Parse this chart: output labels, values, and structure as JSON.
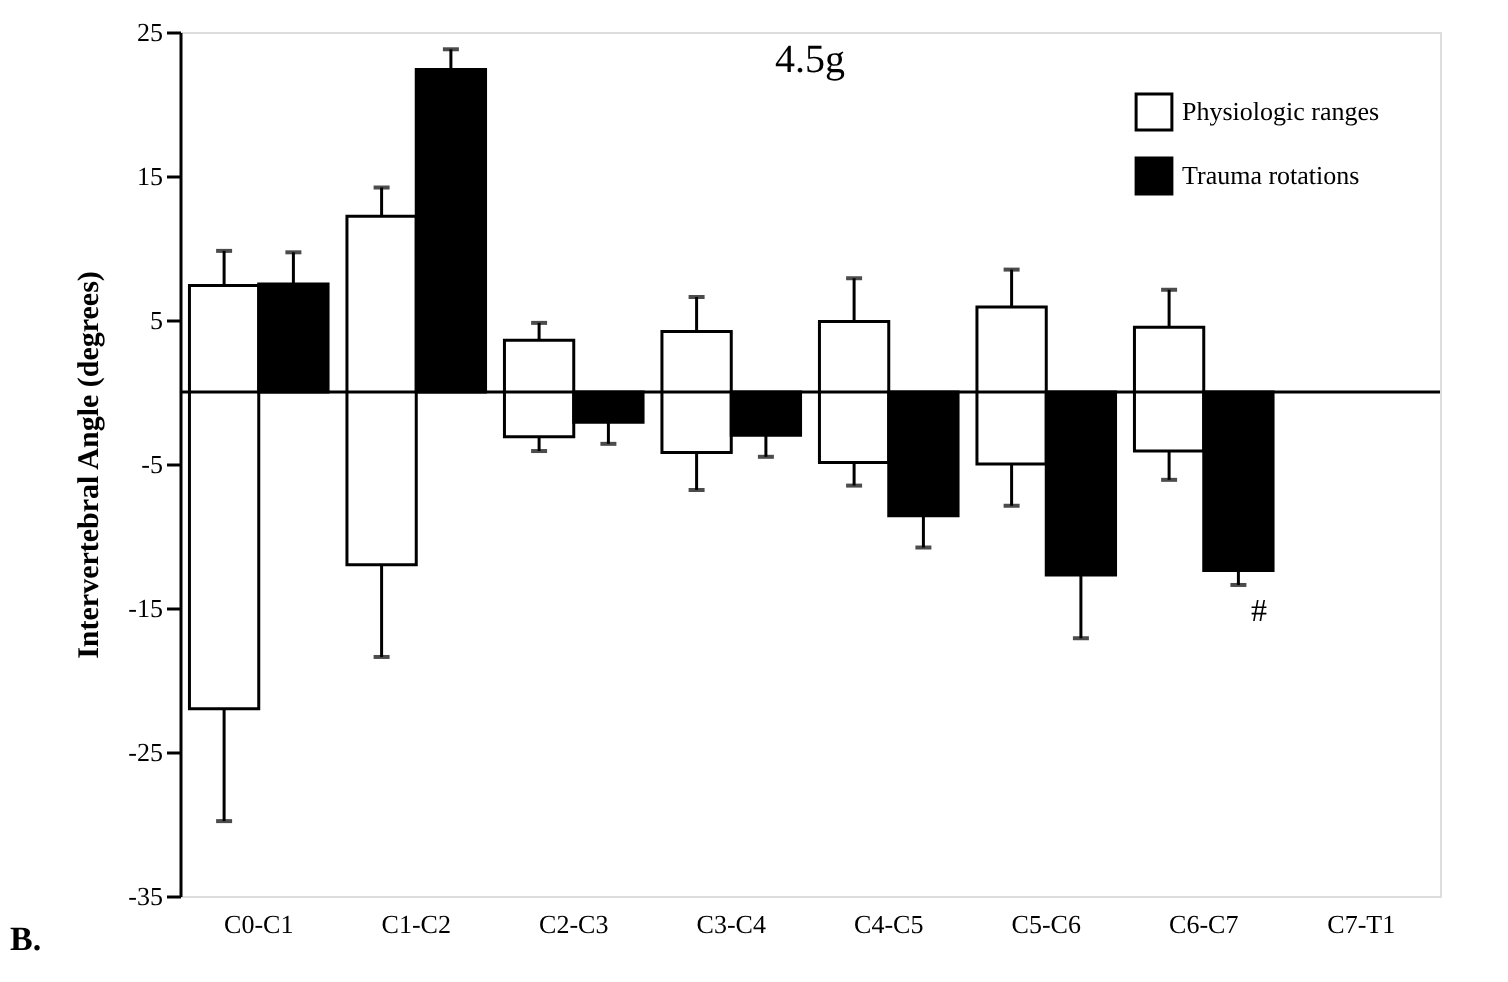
{
  "chart_data": {
    "type": "bar",
    "title": "4.5g",
    "ylabel": "Intervertebral Angle (degrees)",
    "categories": [
      "C0-C1",
      "C1-C2",
      "C2-C3",
      "C3-C4",
      "C4-C5",
      "C5-C6",
      "C6-C7",
      "C7-T1"
    ],
    "series": [
      {
        "name": "Physiologic ranges",
        "color": "#ffffff",
        "base": [
          -22,
          -12,
          -3.1,
          -4.2,
          -4.9,
          -5,
          -4.1,
          null
        ],
        "values": [
          29.4,
          24.2,
          6.7,
          8.4,
          9.8,
          10.9,
          8.6,
          null
        ],
        "errors": [
          [
            -29.8,
            9.8
          ],
          [
            -18.4,
            14.2
          ],
          [
            -4.1,
            4.8
          ],
          [
            -6.8,
            6.6
          ],
          [
            -6.5,
            7.9
          ],
          [
            -7.9,
            8.5
          ],
          [
            -6.1,
            7.1
          ],
          null
        ]
      },
      {
        "name": "Trauma rotations",
        "color": "#000000",
        "values": [
          7.5,
          22.4,
          -2.1,
          -3,
          -8.6,
          -12.7,
          -12.4,
          null
        ],
        "errors": [
          [
            7.5,
            9.7
          ],
          [
            22.4,
            23.8
          ],
          [
            -3.6,
            -2.1
          ],
          [
            -4.5,
            -3
          ],
          [
            -10.8,
            -8.6
          ],
          [
            -17.1,
            -12.7
          ],
          [
            -13.4,
            -12.4
          ],
          null
        ]
      }
    ],
    "ylim": [
      -35,
      25
    ],
    "yticks": [
      -35,
      -25,
      -15,
      -5,
      5,
      15,
      25
    ],
    "grid": false,
    "legend": "top right",
    "annotations": [
      "#",
      "B."
    ]
  }
}
